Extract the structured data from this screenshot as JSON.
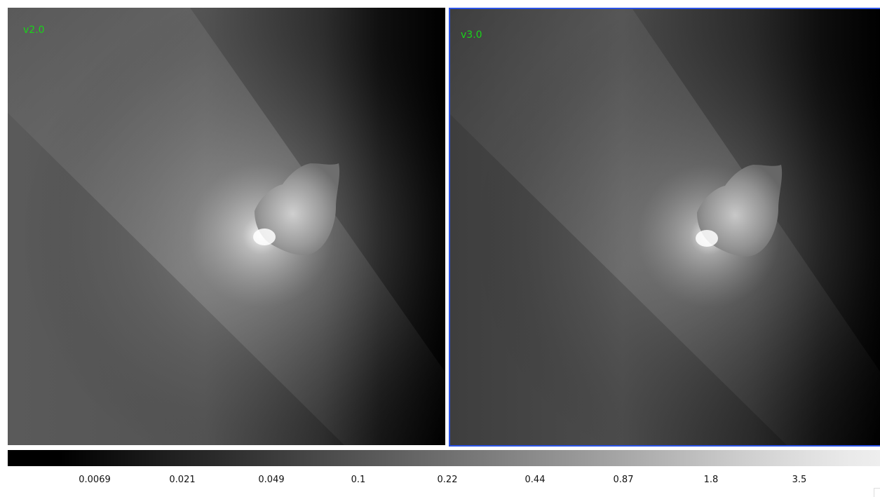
{
  "viewers": [
    {
      "label": "v2.0",
      "selected": false
    },
    {
      "label": "v3.0",
      "selected": true
    }
  ],
  "colorbar": {
    "ticks": [
      "0.0069",
      "0.021",
      "0.049",
      "0.1",
      "0.22",
      "0.44",
      "0.87",
      "1.8",
      "3.5"
    ]
  },
  "colors": {
    "label": "#19d419",
    "selection_border": "#2b53e6"
  }
}
